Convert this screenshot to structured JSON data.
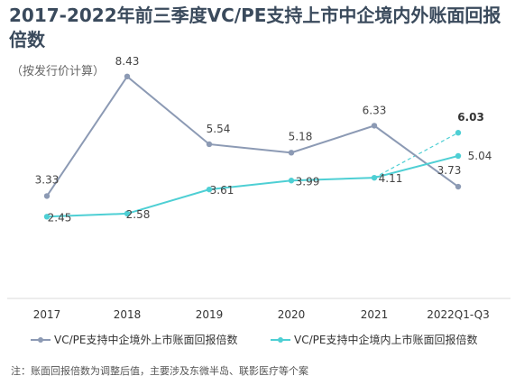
{
  "title": "2017-2022年前三季度VC/PE支持上市中企境内外账面回报倍数",
  "subtitle": "（按发行价计算）",
  "note": "注：账面回报倍数为调整后值，主要涉及东微半岛、联影医疗等个案",
  "chart_data": {
    "type": "line",
    "categories": [
      "2017",
      "2018",
      "2019",
      "2020",
      "2021",
      "2022Q1-Q3"
    ],
    "ylim": [
      0,
      9
    ],
    "grid": false,
    "legend_position": "bottom",
    "series": [
      {
        "name": "VC/PE支持中企境外上市账面回报倍数",
        "color": "#8c9ab4",
        "values": [
          3.33,
          8.43,
          5.54,
          5.18,
          6.33,
          3.73
        ],
        "labels": [
          "3.33",
          "8.43",
          "5.54",
          "5.18",
          "6.33",
          "3.73"
        ]
      },
      {
        "name": "VC/PE支持中企境内上市账面回报倍数",
        "color": "#4ecfd4",
        "values": [
          2.45,
          2.58,
          3.61,
          3.99,
          4.11,
          5.04
        ],
        "labels": [
          "2.45",
          "2.58",
          "3.61",
          "3.99",
          "4.11",
          "5.04"
        ]
      }
    ],
    "annotation": {
      "series": "VC/PE支持中企境内上市账面回报倍数",
      "from_category": "2021",
      "to_category": "2022Q1-Q3",
      "from_value": 4.11,
      "value": 6.03,
      "label": "6.03",
      "style": "dashed"
    }
  }
}
